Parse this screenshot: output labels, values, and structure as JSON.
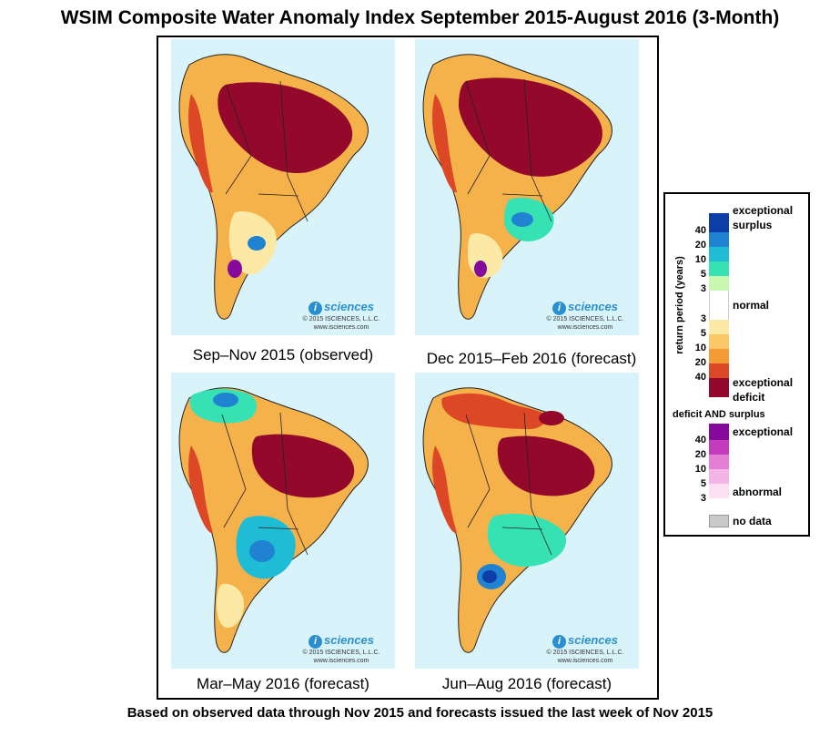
{
  "title": "WSIM Composite Water Anomaly Index September 2015-August 2016 (3-Month)",
  "panels": [
    {
      "caption": "Sep–Nov 2015 (observed)"
    },
    {
      "caption": "Dec 2015–Feb 2016 (forecast)"
    },
    {
      "caption": "Mar–May 2016 (forecast)"
    },
    {
      "caption": "Jun–Aug 2016 (forecast)"
    }
  ],
  "branding": {
    "logo_letter": "i",
    "logo_text": "sciences",
    "copyright": "© 2015 ISCIENCES, L.L.C.",
    "url": "www.isciences.com"
  },
  "legend": {
    "surplus_label": "exceptional surplus",
    "normal_label": "normal",
    "deficit_label": "exceptional deficit",
    "axis_label": "return period (years)",
    "surplus_ticks": [
      "40",
      "20",
      "10",
      "5",
      "3"
    ],
    "deficit_ticks": [
      "3",
      "5",
      "10",
      "20",
      "40"
    ],
    "both_heading": "deficit AND surplus",
    "both_exceptional": "exceptional",
    "both_abnormal": "abnormal",
    "both_ticks": [
      "40",
      "20",
      "10",
      "5",
      "3"
    ],
    "no_data_label": "no data",
    "colors": {
      "surplus": [
        "#0d3ea8",
        "#1f83d2",
        "#1fbcd6",
        "#36e2b4",
        "#c8f7b0"
      ],
      "normal": "#ffffff",
      "deficit": [
        "#fde9a6",
        "#fbc767",
        "#f59b36",
        "#dc4726",
        "#94092b"
      ],
      "both": [
        "#850a9c",
        "#c53bbd",
        "#e57fd5",
        "#f4b4e6",
        "#fde0f4"
      ],
      "no_data": "#c9c9c9",
      "ocean": "#d9f3fb"
    }
  },
  "footer": "Based on observed data through Nov 2015 and forecasts issued the last week of Nov 2015"
}
